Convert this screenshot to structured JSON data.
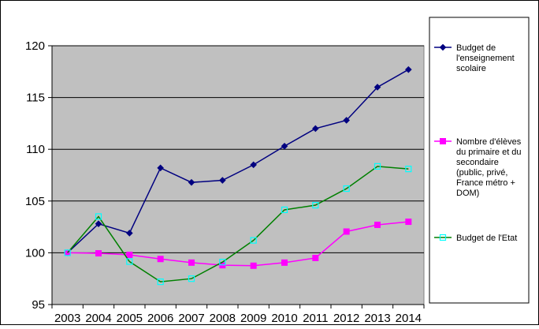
{
  "chart_data": {
    "type": "line",
    "title": "",
    "xlabel": "",
    "ylabel": "",
    "x": [
      "2003",
      "2004",
      "2005",
      "2006",
      "2007",
      "2008",
      "2009",
      "2010",
      "2011",
      "2012",
      "2013",
      "2014"
    ],
    "ylim": [
      95,
      120
    ],
    "yticks": [
      "95",
      "100",
      "105",
      "110",
      "115",
      "120"
    ],
    "grid": "horizontal",
    "plot_background": "#c0c0c0",
    "legend_position": "right",
    "series": [
      {
        "name_lines": [
          "Budget de",
          "l'enseignement",
          "scolaire"
        ],
        "color": "#000080",
        "marker": "filled-diamond",
        "values": [
          100,
          102.8,
          101.9,
          108.2,
          106.8,
          107.0,
          108.5,
          110.3,
          112.0,
          112.8,
          116.0,
          117.7
        ]
      },
      {
        "name_lines": [
          "Nombre d'élèves",
          "du primaire et du",
          "secondaire",
          "(public, privé,",
          "France métro +",
          "DOM)"
        ],
        "color": "#ff00ff",
        "marker": "filled-square",
        "values": [
          100,
          99.95,
          99.8,
          99.4,
          99.05,
          98.8,
          98.75,
          99.05,
          99.5,
          102.05,
          102.7,
          103.0
        ]
      },
      {
        "name_lines": [
          "Budget de l'Etat"
        ],
        "color": "#008000",
        "marker_color": "#00ffff",
        "marker": "hollow-square",
        "values": [
          100,
          103.5,
          99.15,
          97.2,
          97.5,
          99.1,
          101.2,
          104.15,
          104.6,
          106.2,
          108.35,
          108.1
        ]
      }
    ]
  }
}
